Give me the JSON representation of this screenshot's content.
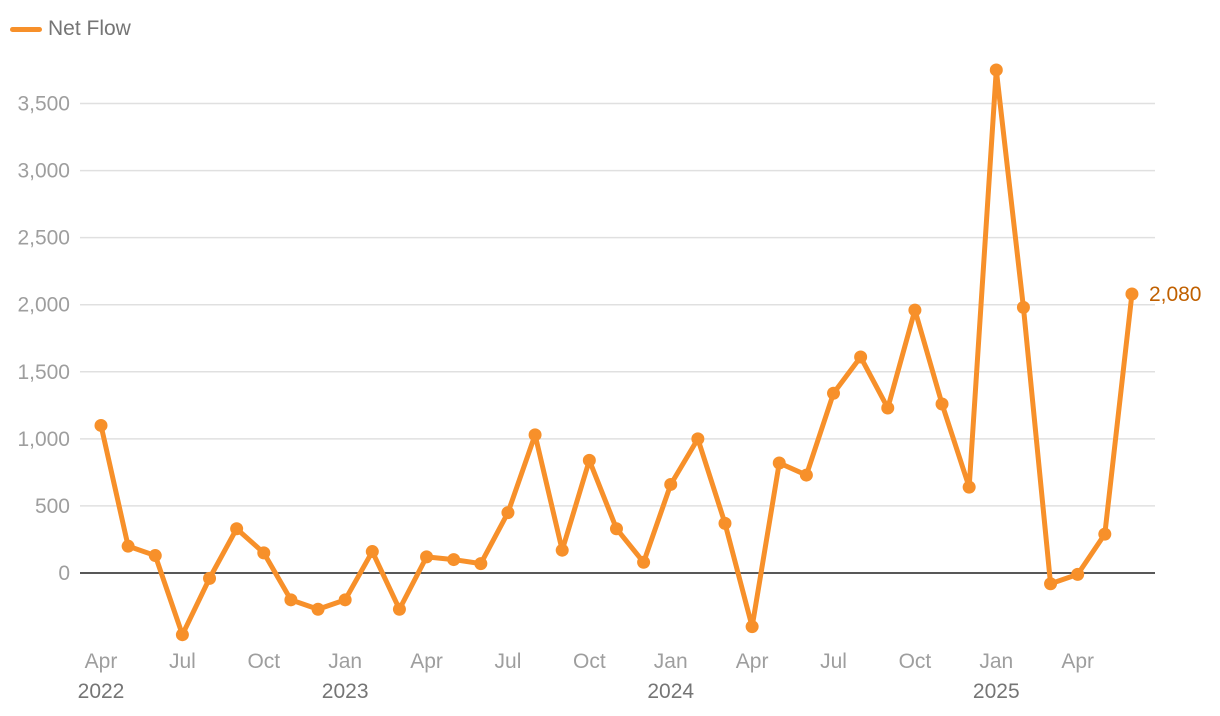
{
  "legend": {
    "label": "Net Flow",
    "color": "#f7902a"
  },
  "colors": {
    "series": "#f7902a",
    "end_label": "#c06000",
    "grid": "#e0e0e0",
    "zero_line": "#212121"
  },
  "chart_data": {
    "type": "line",
    "series": [
      {
        "name": "Net Flow",
        "x": [
          "2022-04",
          "2022-05",
          "2022-06",
          "2022-07",
          "2022-08",
          "2022-09",
          "2022-10",
          "2022-11",
          "2022-12",
          "2023-01",
          "2023-02",
          "2023-03",
          "2023-04",
          "2023-05",
          "2023-06",
          "2023-07",
          "2023-08",
          "2023-09",
          "2023-10",
          "2023-11",
          "2023-12",
          "2024-01",
          "2024-02",
          "2024-03",
          "2024-04",
          "2024-05",
          "2024-06",
          "2024-07",
          "2024-08",
          "2024-09",
          "2024-10",
          "2024-11",
          "2024-12",
          "2025-01",
          "2025-02",
          "2025-03",
          "2025-04",
          "2025-05",
          "2025-06"
        ],
        "values": [
          1100,
          200,
          130,
          -460,
          -40,
          330,
          150,
          -200,
          -270,
          -200,
          160,
          -270,
          120,
          100,
          70,
          450,
          1030,
          170,
          840,
          330,
          80,
          660,
          1000,
          370,
          -400,
          820,
          730,
          1340,
          1610,
          1230,
          1960,
          1260,
          640,
          3750,
          1980,
          -80,
          -10,
          290,
          2080
        ]
      }
    ],
    "end_label": "2,080",
    "ylim": [
      -500,
      3750
    ],
    "y_ticks": [
      0,
      500,
      1000,
      1500,
      2000,
      2500,
      3000,
      3500
    ],
    "y_tick_labels": [
      "0",
      "500",
      "1,000",
      "1,500",
      "2,000",
      "2,500",
      "3,000",
      "3,500"
    ],
    "x_ticks": [
      {
        "date": "2022-04",
        "month": "Apr",
        "year": "2022"
      },
      {
        "date": "2022-07",
        "month": "Jul",
        "year": ""
      },
      {
        "date": "2022-10",
        "month": "Oct",
        "year": ""
      },
      {
        "date": "2023-01",
        "month": "Jan",
        "year": "2023"
      },
      {
        "date": "2023-04",
        "month": "Apr",
        "year": ""
      },
      {
        "date": "2023-07",
        "month": "Jul",
        "year": ""
      },
      {
        "date": "2023-10",
        "month": "Oct",
        "year": ""
      },
      {
        "date": "2024-01",
        "month": "Jan",
        "year": "2024"
      },
      {
        "date": "2024-04",
        "month": "Apr",
        "year": ""
      },
      {
        "date": "2024-07",
        "month": "Jul",
        "year": ""
      },
      {
        "date": "2024-10",
        "month": "Oct",
        "year": ""
      },
      {
        "date": "2025-01",
        "month": "Jan",
        "year": "2025"
      },
      {
        "date": "2025-04",
        "month": "Apr",
        "year": ""
      }
    ],
    "grid": true,
    "legend_position": "top-left"
  }
}
